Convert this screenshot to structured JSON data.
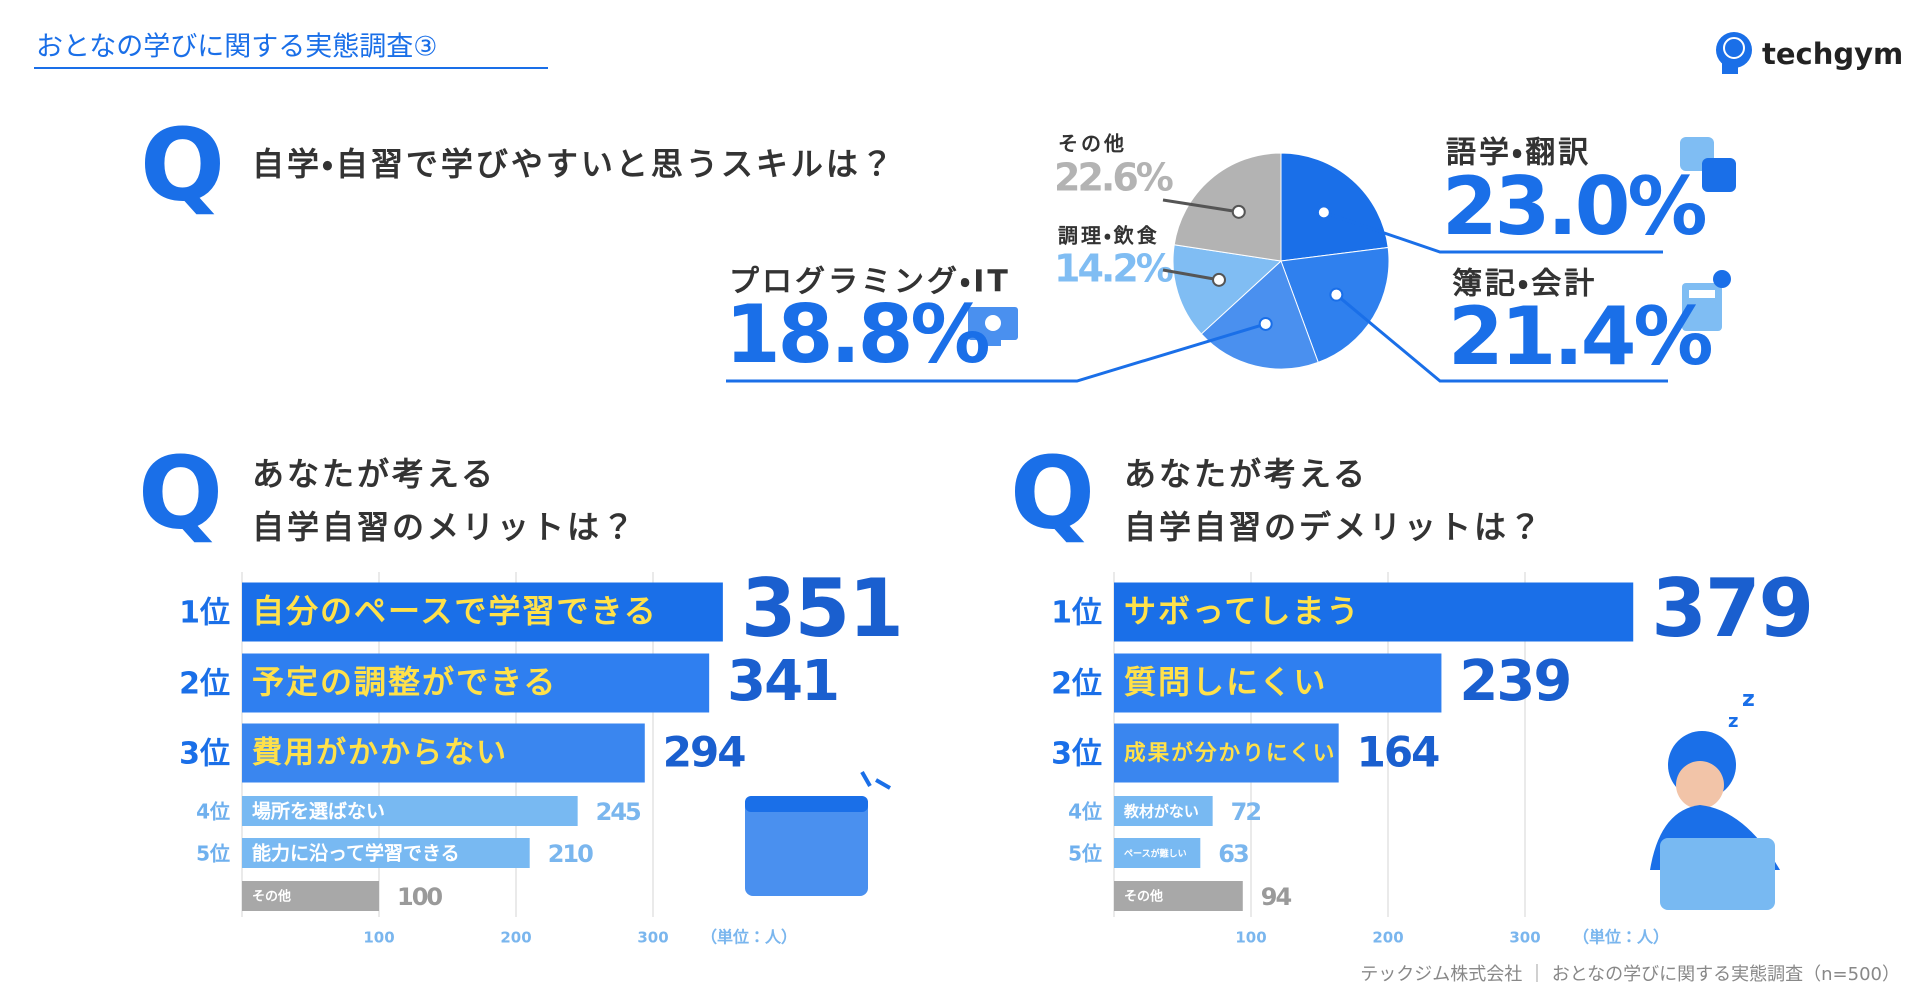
{
  "header": {
    "title": "おとなの学びに関する実態調査③",
    "logo": "techgym"
  },
  "footer": "テックジム株式会社 ｜ おとなの学びに関する実態調査（n=500）",
  "chart_data": [
    {
      "type": "pie",
      "marker": "Q",
      "question": "自学・自習で学びやすいと思うスキルは？",
      "categories": [
        "語学・翻訳",
        "簿記・会計",
        "プログラミング・IT",
        "調理・飲食",
        "その他"
      ],
      "values": [
        23.0,
        21.4,
        18.8,
        14.2,
        22.6
      ],
      "value_labels": [
        "23.0%",
        "21.4%",
        "18.8%",
        "14.2%",
        "22.6%"
      ],
      "colors": [
        "#1a6fe8",
        "#2f80ee",
        "#4a90ef",
        "#80bdf3",
        "#b3b3b3"
      ]
    },
    {
      "type": "bar",
      "orientation": "horizontal",
      "marker": "Q",
      "question": [
        "あなたが考える",
        "自学自習のメリットは？"
      ],
      "ranks": [
        "1位",
        "2位",
        "3位",
        "4位",
        "5位"
      ],
      "categories": [
        "自分のペースで学習できる",
        "予定の調整ができる",
        "費用がかからない",
        "場所を選ばない",
        "能力に沿って学習できる",
        "その他"
      ],
      "values": [
        351,
        341,
        294,
        245,
        210,
        100
      ],
      "colors": [
        "#1a6fe8",
        "#2f7ff0",
        "#3a86ef",
        "#78b9f2",
        "#78b9f2",
        "#a8a8a8"
      ],
      "xlim": [
        0,
        400
      ],
      "xticks": [
        100,
        200,
        300
      ],
      "unit_label": "（単位：人）"
    },
    {
      "type": "bar",
      "orientation": "horizontal",
      "marker": "Q",
      "question": [
        "あなたが考える",
        "自学自習のデメリットは？"
      ],
      "ranks": [
        "1位",
        "2位",
        "3位",
        "4位",
        "5位"
      ],
      "categories": [
        "サボってしまう",
        "質問しにくい",
        "成果が分かりにくい",
        "教材がない",
        "ペースが難しい",
        "その他"
      ],
      "values": [
        379,
        239,
        164,
        72,
        63,
        94
      ],
      "colors": [
        "#1a6fe8",
        "#2f7ff0",
        "#3a86ef",
        "#78b9f2",
        "#78b9f2",
        "#a8a8a8"
      ],
      "xlim": [
        0,
        400
      ],
      "xticks": [
        100,
        200,
        300
      ],
      "unit_label": "（単位：人）"
    }
  ]
}
